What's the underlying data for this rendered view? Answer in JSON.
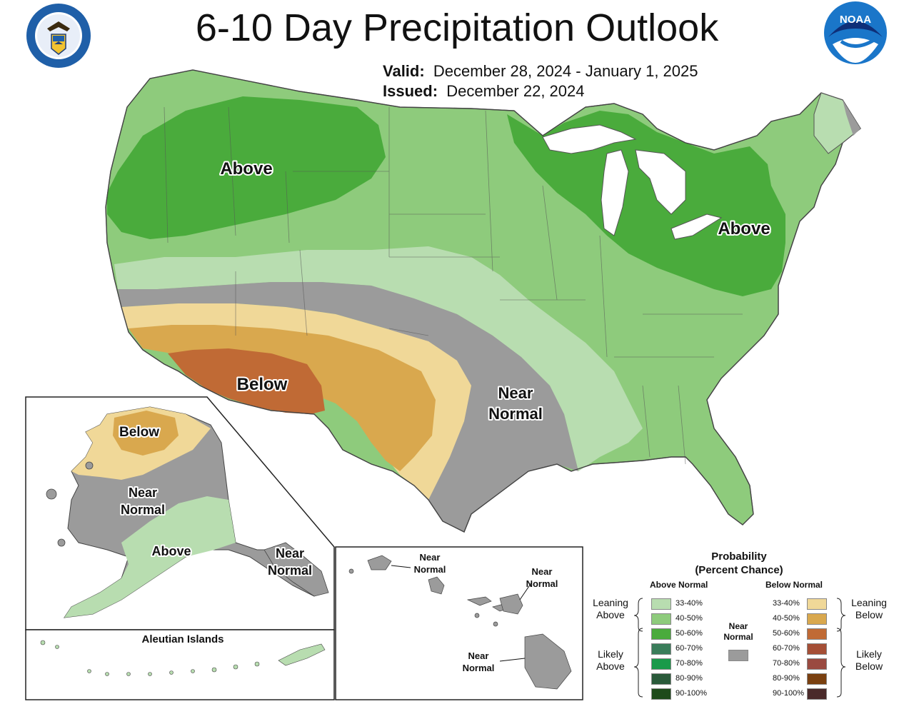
{
  "header": {
    "title": "6-10 Day Precipitation Outlook",
    "valid_label": "Valid:",
    "valid_value": "December 28, 2024 - January 1, 2025",
    "issued_label": "Issued:",
    "issued_value": "December 22, 2024"
  },
  "logos": {
    "left": "department-of-commerce-seal",
    "left_text": "DEPARTMENT OF COMMERCE · UNITED STATES OF AMERICA",
    "right": "noaa-logo",
    "right_text": "NOAA"
  },
  "map_labels": {
    "conus_above_west": "Above",
    "conus_above_east": "Above",
    "conus_below": "Below",
    "conus_near_normal_1": "Near",
    "conus_near_normal_2": "Normal",
    "alaska_below": "Below",
    "alaska_near_normal_1": "Near",
    "alaska_near_normal_2": "Normal",
    "alaska_above": "Above",
    "alaska_se_near_1": "Near",
    "alaska_se_near_2": "Normal",
    "aleutian_title": "Aleutian Islands",
    "hawaii_near_1a": "Near",
    "hawaii_near_1b": "Normal",
    "hawaii_near_2a": "Near",
    "hawaii_near_2b": "Normal",
    "hawaii_near_3a": "Near",
    "hawaii_near_3b": "Normal"
  },
  "legend": {
    "title_line1": "Probability",
    "title_line2": "(Percent Chance)",
    "above_header": "Above Normal",
    "below_header": "Below Normal",
    "near_label_1": "Near",
    "near_label_2": "Normal",
    "leaning_above_1": "Leaning",
    "leaning_above_2": "Above",
    "likely_above_1": "Likely",
    "likely_above_2": "Above",
    "leaning_below_1": "Leaning",
    "leaning_below_2": "Below",
    "likely_below_1": "Likely",
    "likely_below_2": "Below",
    "above_bins": [
      {
        "label": "33-40%",
        "color": "#b8ddb0"
      },
      {
        "label": "40-50%",
        "color": "#8ecb7c"
      },
      {
        "label": "50-60%",
        "color": "#4aab3c"
      },
      {
        "label": "60-70%",
        "color": "#3a7d5a"
      },
      {
        "label": "70-80%",
        "color": "#1a9a4a"
      },
      {
        "label": "80-90%",
        "color": "#2a5a3a"
      },
      {
        "label": "90-100%",
        "color": "#1e4a1a"
      }
    ],
    "below_bins": [
      {
        "label": "33-40%",
        "color": "#f0d898"
      },
      {
        "label": "40-50%",
        "color": "#d9a84e"
      },
      {
        "label": "50-60%",
        "color": "#c06a35"
      },
      {
        "label": "60-70%",
        "color": "#a54f36"
      },
      {
        "label": "70-80%",
        "color": "#9a4a40"
      },
      {
        "label": "80-90%",
        "color": "#7a4010"
      },
      {
        "label": "90-100%",
        "color": "#4a2a2a"
      }
    ],
    "near_color": "#9b9b9b"
  }
}
